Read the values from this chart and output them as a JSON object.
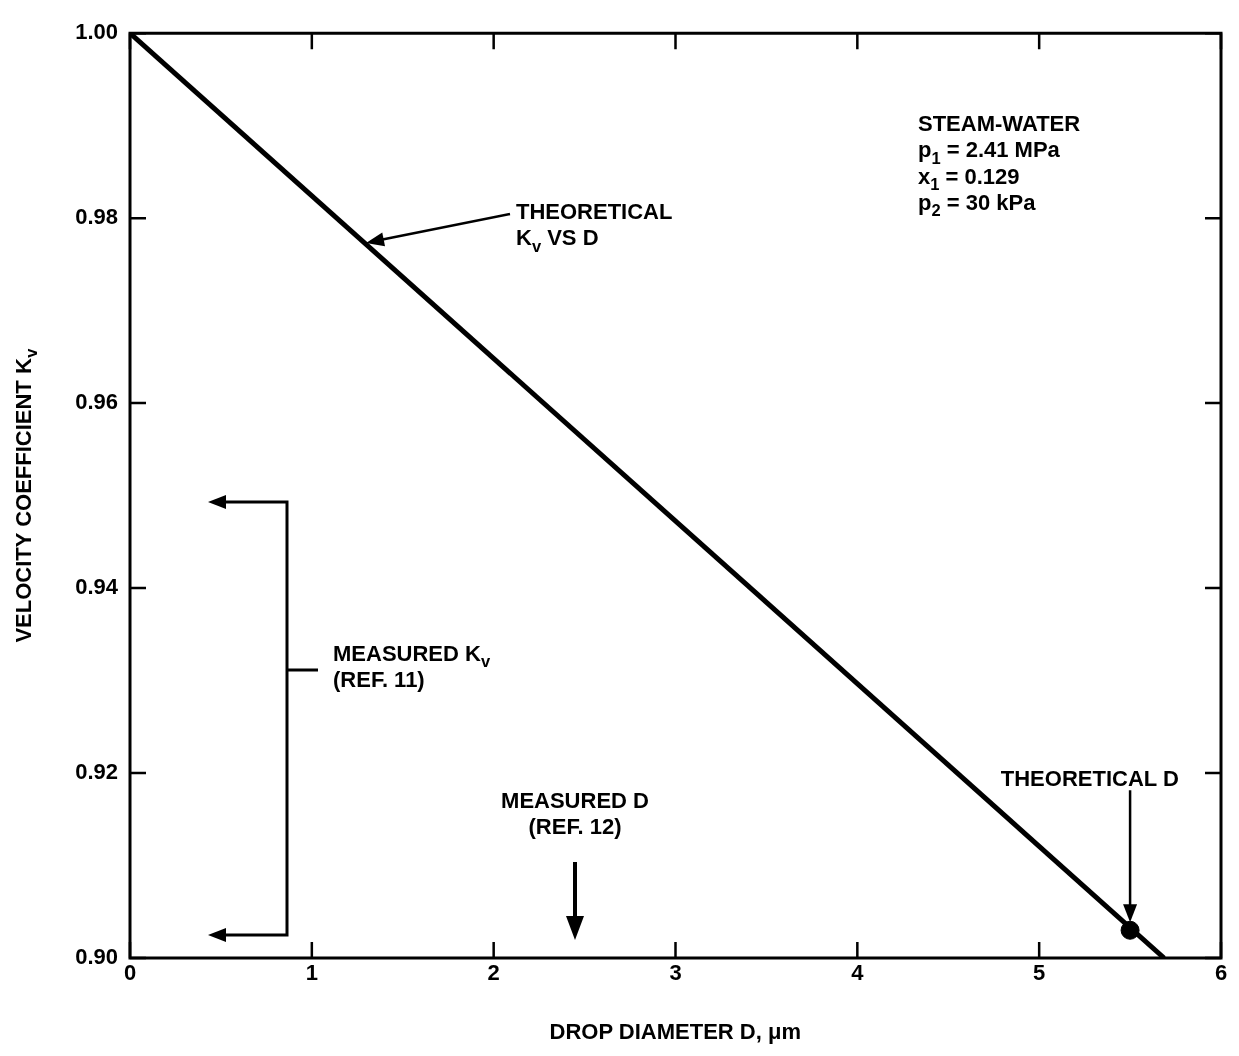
{
  "chart_data": {
    "type": "line",
    "xlabel": "DROP DIAMETER D, μm",
    "ylabel": "VELOCITY COEFFICIENT K$_{v}$",
    "xlim": [
      0,
      6
    ],
    "xticks": [
      0,
      1,
      2,
      3,
      4,
      5,
      6
    ],
    "ylim": [
      0.9,
      1.0
    ],
    "yticks": [
      {
        "value": 0.9,
        "label": "0.90"
      },
      0.92,
      0.94,
      0.96,
      0.98,
      {
        "value": 1.0,
        "label": "1.00"
      }
    ],
    "grid": false,
    "legend": false,
    "series": [
      {
        "color": "#000000",
        "x": [
          0,
          5.687
        ],
        "values": [
          1.0,
          0.9
        ]
      },
      {
        "type": "scatter",
        "color": "#000000",
        "x": [
          5.5
        ],
        "values": [
          0.903
        ],
        "marker": "circle"
      }
    ],
    "annotations": [
      "THEORETICAL\nK$_{v}$ VS D",
      "THEORETICAL D",
      "MEASURED K$_{v}$\n(REF. 11)",
      "MEASURED D\n(REF. 12)",
      "STEAM-WATER\np$_{1}$ = 2.41 MPa\nx$_{1}$ = 0.129\np$_{2}$ = 30 kPa"
    ]
  }
}
